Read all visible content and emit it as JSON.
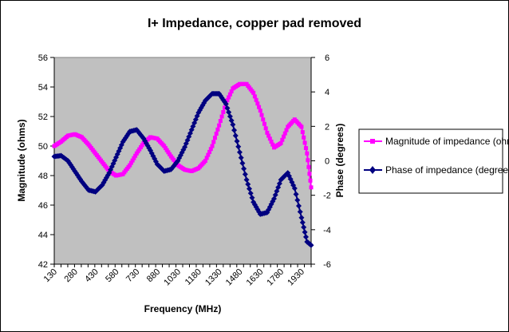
{
  "chart_data": {
    "type": "line",
    "title": "I+ Impedance, copper pad removed",
    "xlabel": "Frequency (MHz)",
    "ylabel_left": "Magnitude (ohms)",
    "ylabel_right": "Phase (degrees)",
    "x_tick_labels": [
      "130",
      "280",
      "430",
      "580",
      "730",
      "880",
      "1030",
      "1180",
      "1330",
      "1480",
      "1630",
      "1780",
      "1930"
    ],
    "x_range": [
      130,
      2000
    ],
    "ylim_left": [
      42,
      56
    ],
    "ylim_right": [
      -6,
      6
    ],
    "left_ticks": [
      "42",
      "44",
      "46",
      "48",
      "50",
      "52",
      "54",
      "56"
    ],
    "right_ticks": [
      "-6",
      "-4",
      "-2",
      "0",
      "2",
      "4",
      "6"
    ],
    "plot_background": "#c0c0c0",
    "legend_position": "right",
    "series": [
      {
        "name": "Magnitude of impedance (ohms)",
        "axis": "left",
        "color": "#ff00ff",
        "marker": "square",
        "points": [
          [
            130,
            50.0
          ],
          [
            180,
            50.3
          ],
          [
            230,
            50.7
          ],
          [
            280,
            50.8
          ],
          [
            330,
            50.6
          ],
          [
            380,
            50.1
          ],
          [
            430,
            49.5
          ],
          [
            480,
            48.9
          ],
          [
            530,
            48.3
          ],
          [
            580,
            48.0
          ],
          [
            630,
            48.1
          ],
          [
            680,
            48.7
          ],
          [
            730,
            49.5
          ],
          [
            780,
            50.2
          ],
          [
            830,
            50.6
          ],
          [
            880,
            50.5
          ],
          [
            930,
            50.0
          ],
          [
            980,
            49.3
          ],
          [
            1030,
            48.7
          ],
          [
            1080,
            48.4
          ],
          [
            1130,
            48.3
          ],
          [
            1180,
            48.5
          ],
          [
            1230,
            49.0
          ],
          [
            1280,
            50.0
          ],
          [
            1330,
            51.4
          ],
          [
            1380,
            52.9
          ],
          [
            1430,
            53.9
          ],
          [
            1480,
            54.2
          ],
          [
            1530,
            54.2
          ],
          [
            1580,
            53.6
          ],
          [
            1630,
            52.4
          ],
          [
            1680,
            50.9
          ],
          [
            1730,
            49.9
          ],
          [
            1780,
            50.2
          ],
          [
            1830,
            51.3
          ],
          [
            1880,
            51.8
          ],
          [
            1930,
            51.3
          ],
          [
            1970,
            49.5
          ],
          [
            2000,
            47.2
          ]
        ]
      },
      {
        "name": "Phase of impedance (degrees)",
        "axis": "right",
        "color": "#000080",
        "marker": "diamond",
        "points": [
          [
            130,
            0.25
          ],
          [
            180,
            0.3
          ],
          [
            230,
            0.0
          ],
          [
            280,
            -0.6
          ],
          [
            330,
            -1.2
          ],
          [
            380,
            -1.7
          ],
          [
            430,
            -1.8
          ],
          [
            480,
            -1.4
          ],
          [
            530,
            -0.7
          ],
          [
            580,
            0.2
          ],
          [
            630,
            1.1
          ],
          [
            680,
            1.7
          ],
          [
            730,
            1.8
          ],
          [
            780,
            1.3
          ],
          [
            830,
            0.6
          ],
          [
            880,
            -0.2
          ],
          [
            930,
            -0.6
          ],
          [
            980,
            -0.5
          ],
          [
            1030,
            0.0
          ],
          [
            1080,
            0.8
          ],
          [
            1130,
            1.8
          ],
          [
            1180,
            2.8
          ],
          [
            1230,
            3.5
          ],
          [
            1280,
            3.9
          ],
          [
            1330,
            3.9
          ],
          [
            1380,
            3.3
          ],
          [
            1430,
            2.1
          ],
          [
            1480,
            0.5
          ],
          [
            1530,
            -1.1
          ],
          [
            1580,
            -2.4
          ],
          [
            1630,
            -3.1
          ],
          [
            1680,
            -3.0
          ],
          [
            1730,
            -2.2
          ],
          [
            1780,
            -1.1
          ],
          [
            1830,
            -0.7
          ],
          [
            1880,
            -1.6
          ],
          [
            1930,
            -3.3
          ],
          [
            1970,
            -4.7
          ],
          [
            2000,
            -4.9
          ]
        ]
      }
    ]
  }
}
